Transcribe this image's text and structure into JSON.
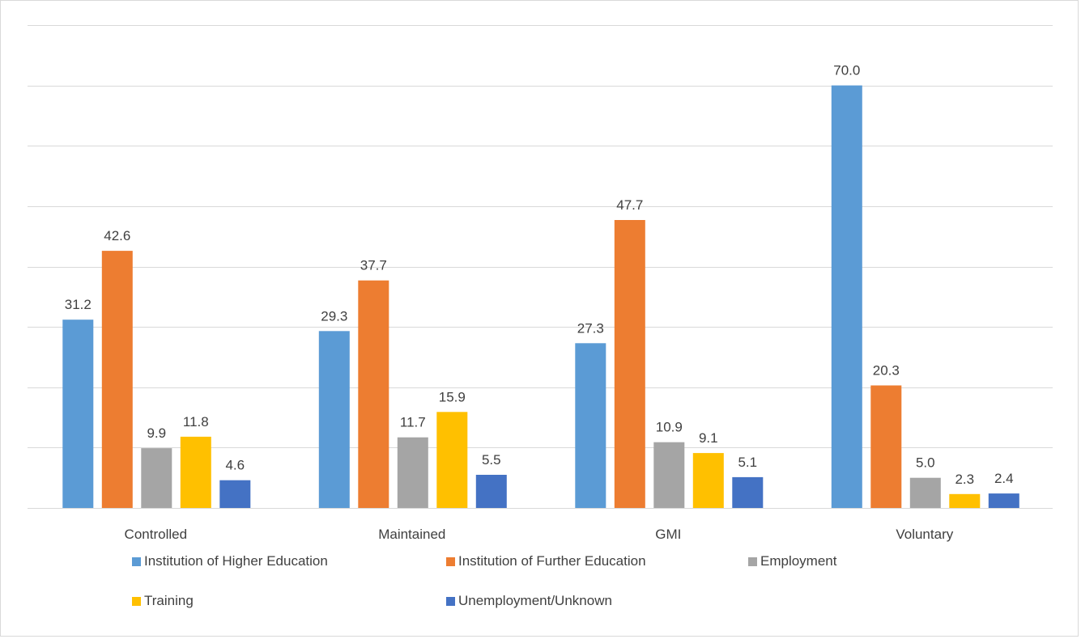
{
  "chart_data": {
    "type": "bar",
    "title": "",
    "xlabel": "",
    "ylabel": "",
    "ylim": [
      0,
      80
    ],
    "grid": true,
    "legend_position": "bottom",
    "categories": [
      "Controlled",
      "Maintained",
      "GMI",
      "Voluntary"
    ],
    "series": [
      {
        "name": "Institution of Higher Education",
        "color": "#5B9BD5",
        "values": [
          31.2,
          29.3,
          27.3,
          70.0
        ],
        "labels": [
          "31.2",
          "29.3",
          "27.3",
          "70.0"
        ]
      },
      {
        "name": "Institution of Further Education",
        "color": "#ED7D31",
        "values": [
          42.6,
          37.7,
          47.7,
          20.3
        ],
        "labels": [
          "42.6",
          "37.7",
          "47.7",
          "20.3"
        ]
      },
      {
        "name": "Employment",
        "color": "#A5A5A5",
        "values": [
          9.9,
          11.7,
          10.9,
          5.0
        ],
        "labels": [
          "9.9",
          "11.7",
          "10.9",
          "5.0"
        ]
      },
      {
        "name": "Training",
        "color": "#FFC000",
        "values": [
          11.8,
          15.9,
          9.1,
          2.3
        ],
        "labels": [
          "11.8",
          "15.9",
          "9.1",
          "2.3"
        ]
      },
      {
        "name": "Unemployment/Unknown",
        "color": "#4472C4",
        "values": [
          4.6,
          5.5,
          5.1,
          2.4
        ],
        "labels": [
          "4.6",
          "5.5",
          "5.1",
          "2.4"
        ]
      }
    ]
  }
}
